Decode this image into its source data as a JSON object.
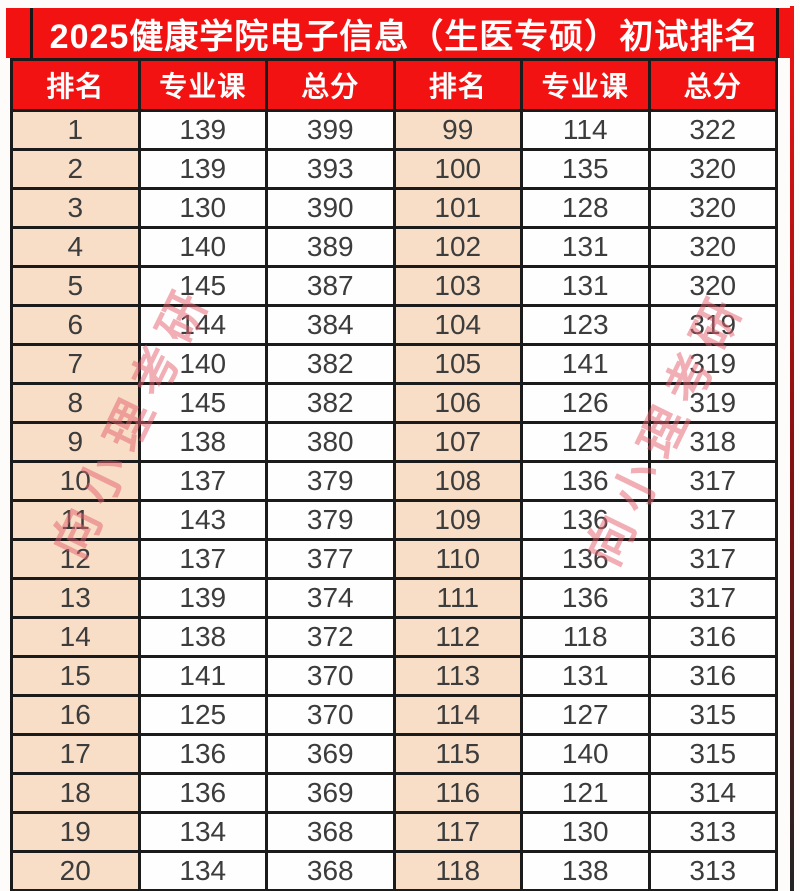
{
  "title": "2025健康学院电子信息（生医专硕）初试排名",
  "watermark": "向小理考研",
  "colors": {
    "banner_red": "#f31212",
    "rank_cell_peach": "#f8dec6",
    "border_black": "#1b1b1b",
    "cell_text": "#3c3c3c",
    "watermark_pink": "#e5606e"
  },
  "table": {
    "headers": [
      "排名",
      "专业课",
      "总分",
      "排名",
      "专业课",
      "总分"
    ],
    "rows": [
      [
        1,
        139,
        399,
        99,
        114,
        322
      ],
      [
        2,
        139,
        393,
        100,
        135,
        320
      ],
      [
        3,
        130,
        390,
        101,
        128,
        320
      ],
      [
        4,
        140,
        389,
        102,
        131,
        320
      ],
      [
        5,
        145,
        387,
        103,
        131,
        320
      ],
      [
        6,
        144,
        384,
        104,
        123,
        319
      ],
      [
        7,
        140,
        382,
        105,
        141,
        319
      ],
      [
        8,
        145,
        382,
        106,
        126,
        319
      ],
      [
        9,
        138,
        380,
        107,
        125,
        318
      ],
      [
        10,
        137,
        379,
        108,
        136,
        317
      ],
      [
        11,
        143,
        379,
        109,
        136,
        317
      ],
      [
        12,
        137,
        377,
        110,
        136,
        317
      ],
      [
        13,
        139,
        374,
        111,
        136,
        317
      ],
      [
        14,
        138,
        372,
        112,
        118,
        316
      ],
      [
        15,
        141,
        370,
        113,
        131,
        316
      ],
      [
        16,
        125,
        370,
        114,
        127,
        315
      ],
      [
        17,
        136,
        369,
        115,
        140,
        315
      ],
      [
        18,
        136,
        369,
        116,
        121,
        314
      ],
      [
        19,
        134,
        368,
        117,
        130,
        313
      ],
      [
        20,
        134,
        368,
        118,
        138,
        313
      ]
    ]
  }
}
